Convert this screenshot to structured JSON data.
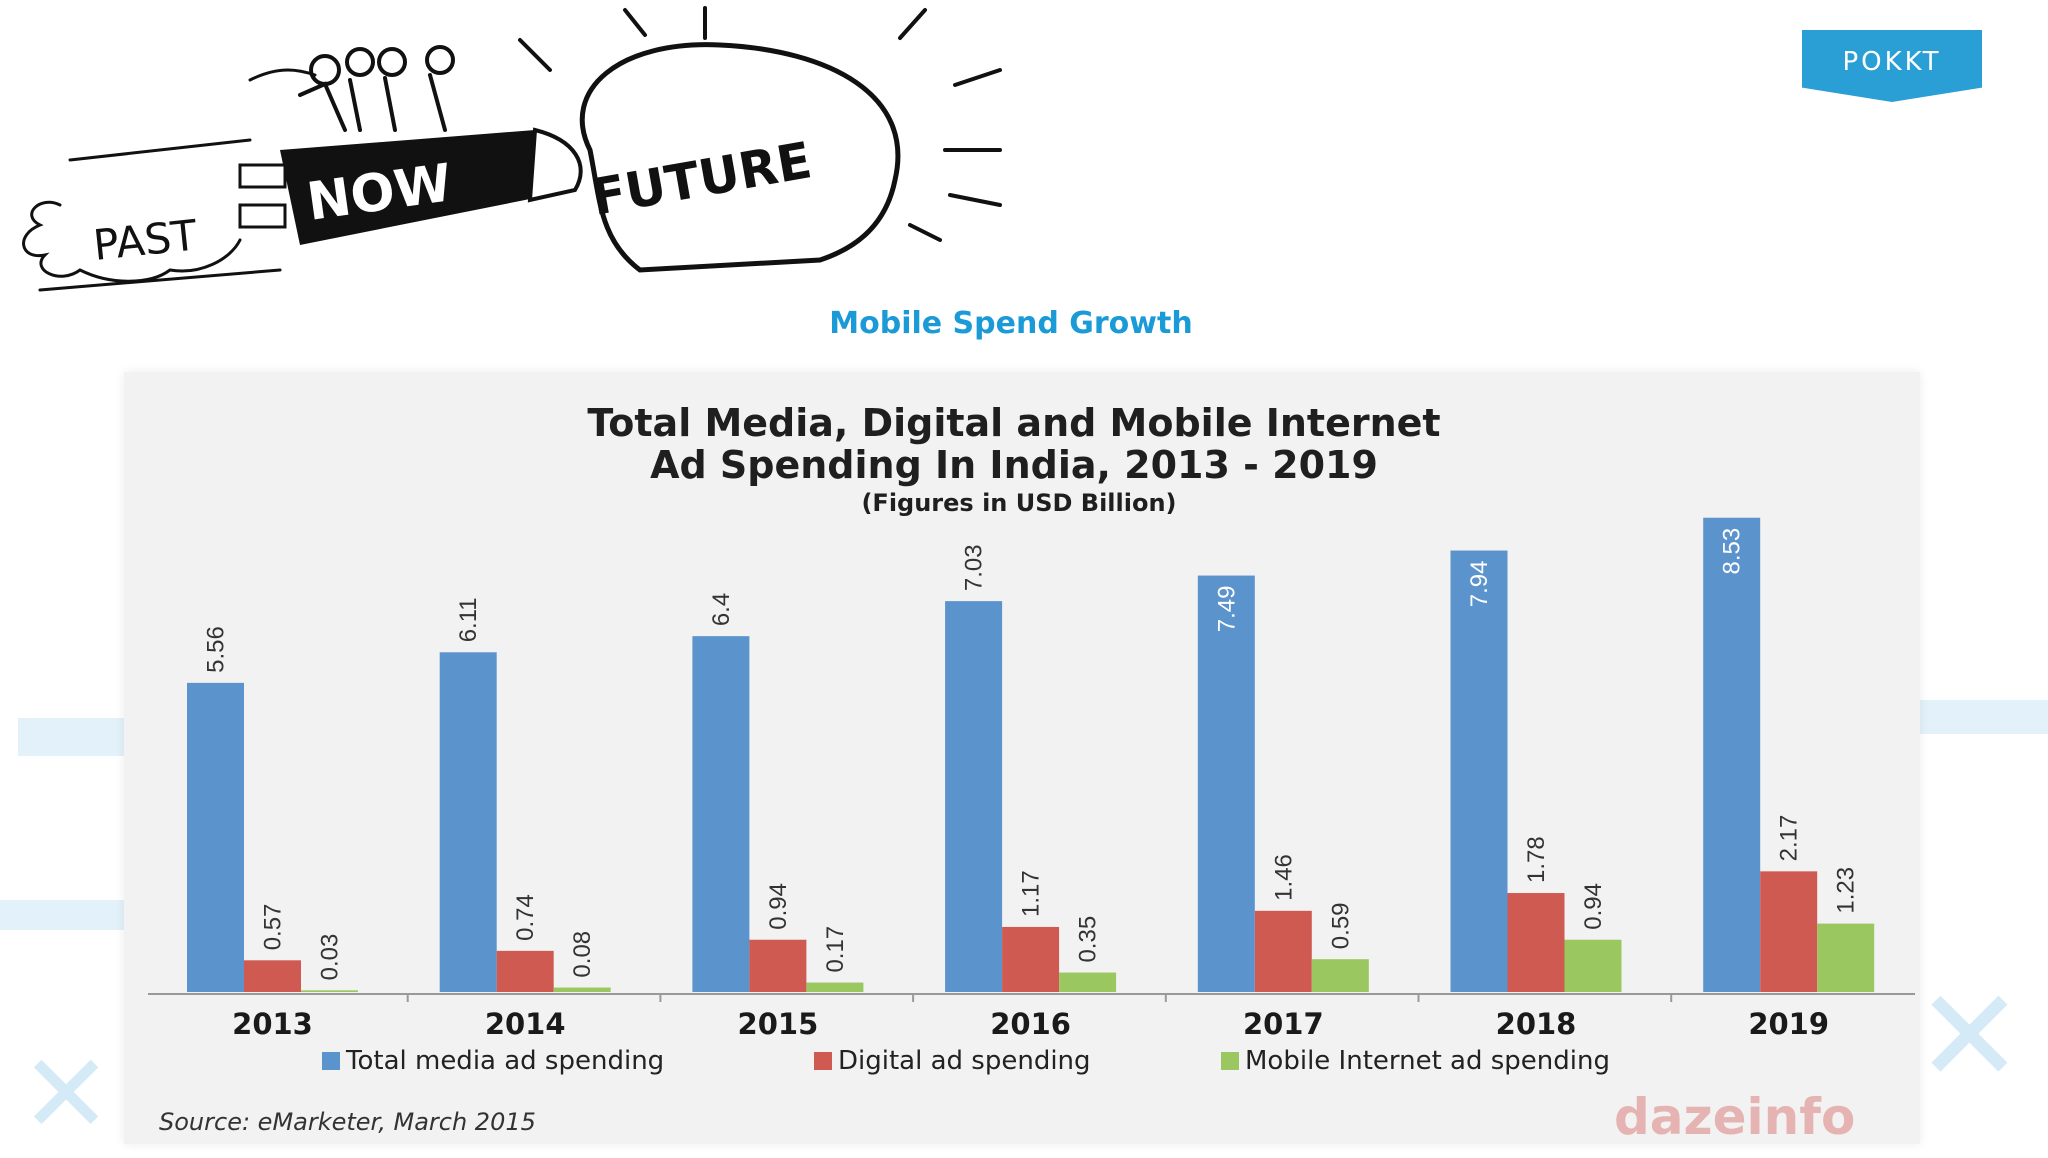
{
  "brand": {
    "name": "POKKT",
    "color": "#2a9fd6"
  },
  "illustration": {
    "labels": [
      "PAST",
      "NOW",
      "FUTURE"
    ]
  },
  "slide_title": "Mobile Spend Growth",
  "chart_data": {
    "type": "bar",
    "title_line1": "Total Media, Digital and Mobile Internet",
    "title_line2": "Ad Spending In India, 2013 - 2019",
    "subtitle": "(Figures in USD Billion)",
    "categories": [
      "2013",
      "2014",
      "2015",
      "2016",
      "2017",
      "2018",
      "2019"
    ],
    "series": [
      {
        "name": "Total media ad spending",
        "color": "#5b93cc",
        "values": [
          5.56,
          6.11,
          6.4,
          7.03,
          7.49,
          7.94,
          8.53
        ],
        "value_labels": [
          "5.56",
          "6.11",
          "6.4",
          "7.03",
          "7.49",
          "7.94",
          "8.53"
        ]
      },
      {
        "name": "Digital ad spending",
        "color": "#cf5a52",
        "values": [
          0.57,
          0.74,
          0.94,
          1.17,
          1.46,
          1.78,
          2.17
        ],
        "value_labels": [
          "0.57",
          "0.74",
          "0.94",
          "1.17",
          "1.46",
          "1.78",
          "2.17"
        ]
      },
      {
        "name": "Mobile Internet ad spending",
        "color": "#9bc760",
        "values": [
          0.03,
          0.08,
          0.17,
          0.35,
          0.59,
          0.94,
          1.23
        ],
        "value_labels": [
          "0.03",
          "0.08",
          "0.17",
          "0.35",
          "0.59",
          "0.94",
          "1.23"
        ]
      }
    ],
    "ylim": [
      0,
      9
    ],
    "grid": false,
    "legend_position": "bottom",
    "source": "Source: eMarketer, March 2015",
    "watermark": "dazeinfo"
  }
}
